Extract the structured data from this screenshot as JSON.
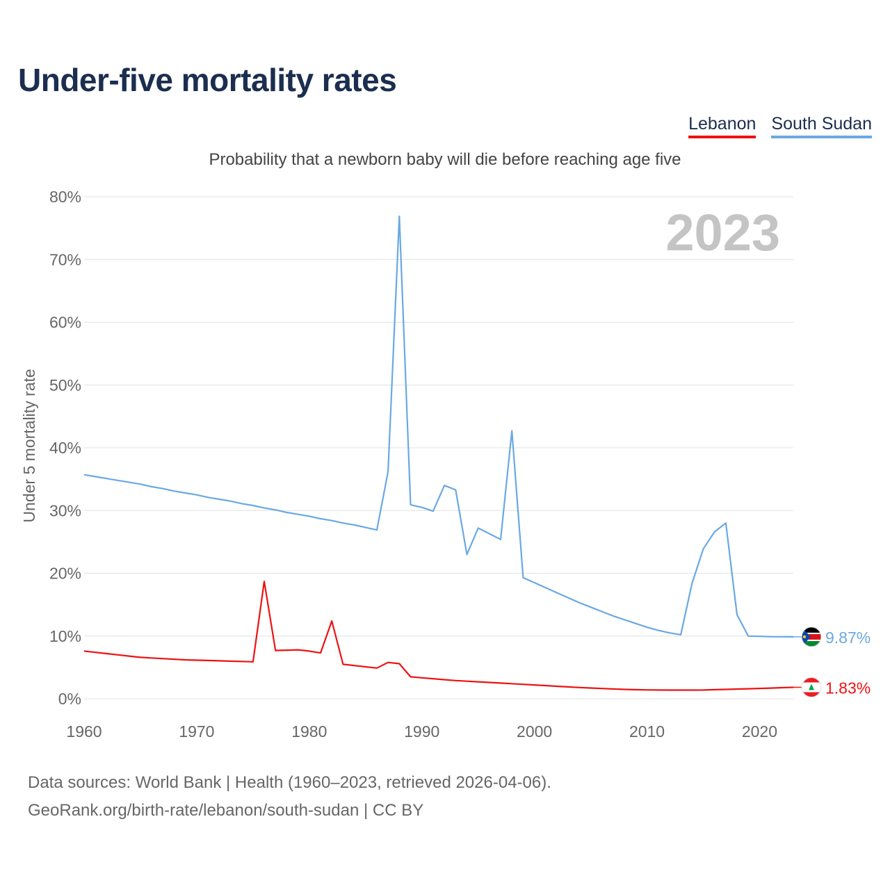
{
  "chart_data": {
    "type": "line",
    "title": "Under-five mortality rates",
    "subtitle": "Probability that a newborn baby will die before reaching age five",
    "ylabel": "Under 5 mortality rate",
    "xlabel": "",
    "year_label": "2023",
    "xlim": [
      1960,
      2023
    ],
    "ylim": [
      0,
      80
    ],
    "y_ticks": [
      {
        "value": 0,
        "label": "0%"
      },
      {
        "value": 10,
        "label": "10%"
      },
      {
        "value": 20,
        "label": "20%"
      },
      {
        "value": 30,
        "label": "30%"
      },
      {
        "value": 40,
        "label": "40%"
      },
      {
        "value": 50,
        "label": "50%"
      },
      {
        "value": 60,
        "label": "60%"
      },
      {
        "value": 70,
        "label": "70%"
      },
      {
        "value": 80,
        "label": "80%"
      }
    ],
    "x_ticks": [
      {
        "value": 1960,
        "label": "1960"
      },
      {
        "value": 1970,
        "label": "1970"
      },
      {
        "value": 1980,
        "label": "1980"
      },
      {
        "value": 1990,
        "label": "1990"
      },
      {
        "value": 2000,
        "label": "2000"
      },
      {
        "value": 2010,
        "label": "2010"
      },
      {
        "value": 2020,
        "label": "2020"
      }
    ],
    "x": [
      1960,
      1961,
      1962,
      1963,
      1964,
      1965,
      1966,
      1967,
      1968,
      1969,
      1970,
      1971,
      1972,
      1973,
      1974,
      1975,
      1976,
      1977,
      1978,
      1979,
      1980,
      1981,
      1982,
      1983,
      1984,
      1985,
      1986,
      1987,
      1988,
      1989,
      1990,
      1991,
      1992,
      1993,
      1994,
      1995,
      1996,
      1997,
      1998,
      1999,
      2000,
      2001,
      2002,
      2003,
      2004,
      2005,
      2006,
      2007,
      2008,
      2009,
      2010,
      2011,
      2012,
      2013,
      2014,
      2015,
      2016,
      2017,
      2018,
      2019,
      2020,
      2021,
      2022,
      2023
    ],
    "series": [
      {
        "name": "Lebanon",
        "color": "#ee1111",
        "end_label": "1.83%",
        "values": [
          7.6,
          7.4,
          7.2,
          7.0,
          6.8,
          6.6,
          6.5,
          6.4,
          6.3,
          6.2,
          6.15,
          6.1,
          6.05,
          6.0,
          5.95,
          5.9,
          18.7,
          7.7,
          7.75,
          7.8,
          7.6,
          7.3,
          12.4,
          5.5,
          5.3,
          5.1,
          4.9,
          5.8,
          5.6,
          3.5,
          3.35,
          3.2,
          3.05,
          2.9,
          2.8,
          2.7,
          2.6,
          2.5,
          2.4,
          2.3,
          2.2,
          2.1,
          2.0,
          1.9,
          1.8,
          1.72,
          1.64,
          1.56,
          1.5,
          1.45,
          1.42,
          1.4,
          1.38,
          1.38,
          1.38,
          1.4,
          1.45,
          1.5,
          1.55,
          1.6,
          1.65,
          1.71,
          1.77,
          1.83
        ]
      },
      {
        "name": "South Sudan",
        "color": "#6aa8e4",
        "end_label": "9.87%",
        "values": [
          35.7,
          35.4,
          35.1,
          34.8,
          34.5,
          34.2,
          33.8,
          33.5,
          33.1,
          32.8,
          32.5,
          32.1,
          31.8,
          31.5,
          31.1,
          30.8,
          30.4,
          30.1,
          29.7,
          29.4,
          29.1,
          28.7,
          28.4,
          28.0,
          27.7,
          27.3,
          26.9,
          36.2,
          76.9,
          30.9,
          30.5,
          29.9,
          34.0,
          33.3,
          23.0,
          27.2,
          26.3,
          25.4,
          42.7,
          19.3,
          18.5,
          17.7,
          16.9,
          16.1,
          15.3,
          14.6,
          13.9,
          13.2,
          12.6,
          12.0,
          11.4,
          10.9,
          10.5,
          10.2,
          18.4,
          23.9,
          26.6,
          28.0,
          13.4,
          10.0,
          9.95,
          9.9,
          9.88,
          9.87
        ]
      }
    ]
  },
  "legend": [
    "Lebanon",
    "South Sudan"
  ],
  "flag_colors": {
    "lebanon": [
      "#ed1c24",
      "#ffffff",
      "#00a651"
    ],
    "south_sudan": [
      "#000000",
      "#ffffff",
      "#da121a",
      "#078930",
      "#0f47af",
      "#fcdd09"
    ]
  },
  "footer": {
    "line1": "Data sources: World Bank | Health (1960–2023, retrieved 2026-04-06).",
    "line2": "GeoRank.org/birth-rate/lebanon/south-sudan | CC BY"
  }
}
